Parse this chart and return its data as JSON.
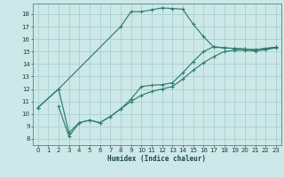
{
  "xlabel": "Humidex (Indice chaleur)",
  "xlim": [
    -0.5,
    23.5
  ],
  "ylim": [
    7.5,
    18.85
  ],
  "xticks": [
    0,
    1,
    2,
    3,
    4,
    5,
    6,
    7,
    8,
    9,
    10,
    11,
    12,
    13,
    14,
    15,
    16,
    17,
    18,
    19,
    20,
    21,
    22,
    23
  ],
  "yticks": [
    8,
    9,
    10,
    11,
    12,
    13,
    14,
    15,
    16,
    17,
    18
  ],
  "bg_color": "#cde8e8",
  "grid_color": "#a8d0d0",
  "line_color": "#2e7d6e",
  "curves": [
    {
      "x": [
        0,
        2,
        8,
        9,
        10,
        11,
        12,
        13,
        14,
        15,
        16,
        17,
        18,
        19,
        20,
        21,
        22,
        23
      ],
      "y": [
        10.5,
        12.0,
        17.0,
        18.2,
        18.2,
        18.35,
        18.5,
        18.45,
        18.4,
        17.2,
        16.2,
        15.35,
        15.3,
        15.25,
        15.2,
        15.15,
        15.25,
        15.35
      ]
    },
    {
      "x": [
        0,
        2,
        3,
        4,
        5,
        6,
        7,
        8,
        9,
        10,
        11,
        12,
        13,
        14,
        15,
        16,
        17,
        18,
        19,
        20,
        21,
        22,
        23
      ],
      "y": [
        10.5,
        12.0,
        8.5,
        9.3,
        9.5,
        9.3,
        9.8,
        10.4,
        11.2,
        12.2,
        12.3,
        12.35,
        12.5,
        13.3,
        14.2,
        15.0,
        15.4,
        15.3,
        15.25,
        15.2,
        15.15,
        15.25,
        15.35
      ]
    },
    {
      "x": [
        2,
        3,
        4,
        5,
        6,
        7,
        8,
        9,
        10,
        11,
        12,
        13,
        14,
        15,
        16,
        17,
        18,
        19,
        20,
        21,
        22,
        23
      ],
      "y": [
        10.6,
        8.2,
        9.3,
        9.5,
        9.3,
        9.8,
        10.4,
        11.0,
        11.5,
        11.8,
        12.0,
        12.2,
        12.8,
        13.5,
        14.1,
        14.6,
        15.0,
        15.1,
        15.1,
        15.05,
        15.15,
        15.3
      ]
    }
  ]
}
